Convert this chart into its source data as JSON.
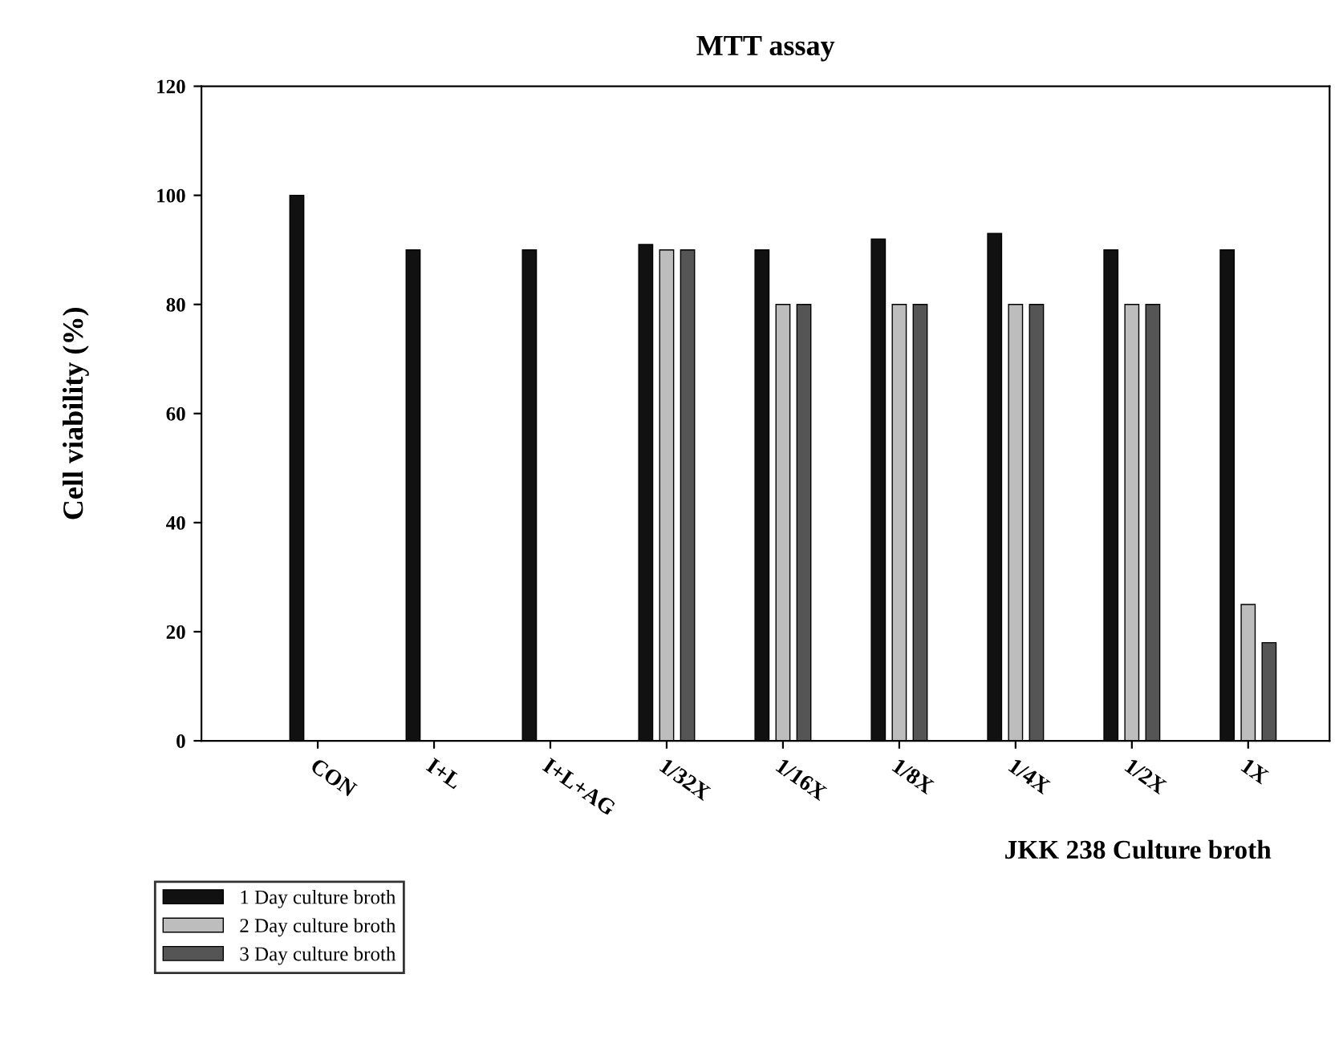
{
  "chart_data": {
    "type": "bar",
    "title": "MTT assay",
    "xlabel": "JKK 238 Culture broth",
    "ylabel": "Cell viability (%)",
    "categories": [
      "CON",
      "I+L",
      "I+L+AG",
      "1/32X",
      "1/16X",
      "1/8X",
      "1/4X",
      "1/2X",
      "1X"
    ],
    "series": [
      {
        "name": "1 Day culture broth",
        "color": "#111111",
        "values": [
          100,
          90,
          90,
          91,
          90,
          92,
          93,
          90,
          90
        ]
      },
      {
        "name": "2 Day culture broth",
        "color": "#bdbdbd",
        "values": [
          null,
          null,
          null,
          90,
          80,
          80,
          80,
          80,
          25
        ]
      },
      {
        "name": "3 Day culture broth",
        "color": "#555555",
        "values": [
          null,
          null,
          null,
          90,
          80,
          80,
          80,
          80,
          18
        ]
      }
    ],
    "ylim": [
      0,
      120
    ],
    "yticks": [
      0,
      20,
      40,
      60,
      80,
      100,
      120
    ],
    "grid": false,
    "legend": "bottom left"
  }
}
